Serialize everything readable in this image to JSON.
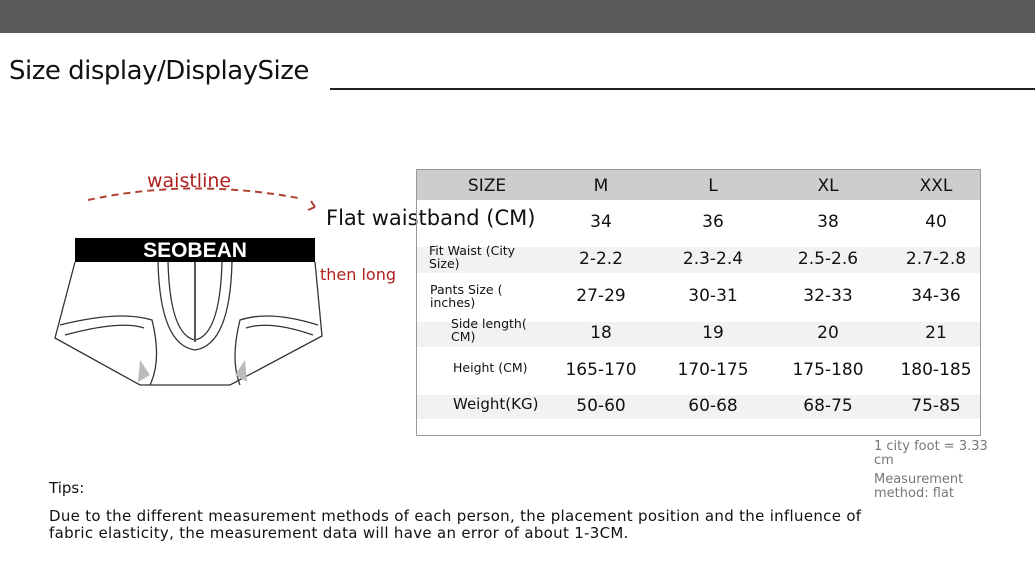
{
  "title": "Size display/DisplaySize",
  "diagram": {
    "waistline": "waistline",
    "then_long": "then long",
    "brand": "SEOBEAN",
    "flat_waistband": "Flat waistband (CM)"
  },
  "table": {
    "header": [
      "SIZE",
      "M",
      "L",
      "XL",
      "XXL"
    ],
    "rows": [
      {
        "label": "Flat waistband (CM)",
        "values": [
          "34",
          "36",
          "38",
          "40"
        ]
      },
      {
        "label": "Fit Waist (City\nSize)",
        "values": [
          "2-2.2",
          "2.3-2.4",
          "2.5-2.6",
          "2.7-2.8"
        ]
      },
      {
        "label": "Pants Size (\ninches)",
        "values": [
          "27-29",
          "30-31",
          "32-33",
          "34-36"
        ]
      },
      {
        "label": "Side length(\nCM)",
        "values": [
          "18",
          "19",
          "20",
          "21"
        ]
      },
      {
        "label": "Height (CM)",
        "values": [
          "165-170",
          "170-175",
          "175-180",
          "180-185"
        ]
      },
      {
        "label": "Weight(KG)",
        "values": [
          "50-60",
          "60-68",
          "68-75",
          "75-85"
        ]
      }
    ]
  },
  "notes": {
    "city_foot": "1 city foot = 3.33\ncm",
    "method": "Measurement\nmethod: flat"
  },
  "tips": {
    "heading": "Tips:",
    "line1": "Due to the different measurement methods of each person, the placement position and the influence of",
    "line2": "fabric elasticity, the measurement data will have an error of about 1-3CM."
  },
  "colors": {
    "accent_red": "#b01e1e",
    "header_gray": "#cdcdcd",
    "topbar": "#5a5a5a"
  }
}
